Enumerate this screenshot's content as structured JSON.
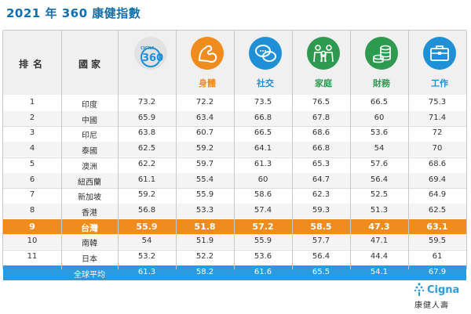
{
  "title": "2021 年 360 康健指數",
  "headers": {
    "rank": "排名",
    "country": "國家",
    "cigna_top": "CIGNA",
    "cigna_num": "360",
    "categories": [
      {
        "label": "身體",
        "icon": "arm-muscle-icon",
        "color": "#f08c1e"
      },
      {
        "label": "社交",
        "icon": "chat-bubbles-icon",
        "color": "#1f8fd6"
      },
      {
        "label": "家庭",
        "icon": "family-icon",
        "color": "#2e9a4f"
      },
      {
        "label": "財務",
        "icon": "coins-icon",
        "color": "#2e9a4f"
      },
      {
        "label": "工作",
        "icon": "briefcase-icon",
        "color": "#1f8fd6"
      }
    ]
  },
  "rows": [
    {
      "rank": "1",
      "country": "印度",
      "overall": "73.2",
      "physical": "72.2",
      "social": "73.5",
      "family": "76.5",
      "financial": "66.5",
      "work": "75.3"
    },
    {
      "rank": "2",
      "country": "中國",
      "overall": "65.9",
      "physical": "63.4",
      "social": "66.8",
      "family": "67.8",
      "financial": "60",
      "work": "71.4"
    },
    {
      "rank": "3",
      "country": "印尼",
      "overall": "63.8",
      "physical": "60.7",
      "social": "66.5",
      "family": "68.6",
      "financial": "53.6",
      "work": "72"
    },
    {
      "rank": "4",
      "country": "泰國",
      "overall": "62.5",
      "physical": "59.2",
      "social": "64.1",
      "family": "66.8",
      "financial": "54",
      "work": "70"
    },
    {
      "rank": "5",
      "country": "澳洲",
      "overall": "62.2",
      "physical": "59.7",
      "social": "61.3",
      "family": "65.3",
      "financial": "57.6",
      "work": "68.6"
    },
    {
      "rank": "6",
      "country": "紐西蘭",
      "overall": "61.1",
      "physical": "55.4",
      "social": "60",
      "family": "64.7",
      "financial": "56.4",
      "work": "69.4"
    },
    {
      "rank": "7",
      "country": "新加坡",
      "overall": "59.2",
      "physical": "55.9",
      "social": "58.6",
      "family": "62.3",
      "financial": "52.5",
      "work": "64.9"
    },
    {
      "rank": "8",
      "country": "香港",
      "overall": "56.8",
      "physical": "53.3",
      "social": "57.4",
      "family": "59.3",
      "financial": "51.3",
      "work": "62.5"
    },
    {
      "rank": "9",
      "country": "台灣",
      "overall": "55.9",
      "physical": "51.8",
      "social": "57.2",
      "family": "58.5",
      "financial": "47.3",
      "work": "63.1"
    },
    {
      "rank": "10",
      "country": "南韓",
      "overall": "54",
      "physical": "51.9",
      "social": "55.9",
      "family": "57.7",
      "financial": "47.1",
      "work": "59.5"
    },
    {
      "rank": "11",
      "country": "日本",
      "overall": "53.2",
      "physical": "52.2",
      "social": "53.6",
      "family": "56.4",
      "financial": "44.4",
      "work": "61"
    }
  ],
  "global": {
    "label": "全球平均",
    "overall": "61.3",
    "physical": "58.2",
    "social": "61.6",
    "family": "65.5",
    "financial": "54.1",
    "work": "67.9"
  },
  "logo": {
    "brand": "Cigna",
    "tagline": "康健人壽",
    "accent": "#2a9be0"
  }
}
